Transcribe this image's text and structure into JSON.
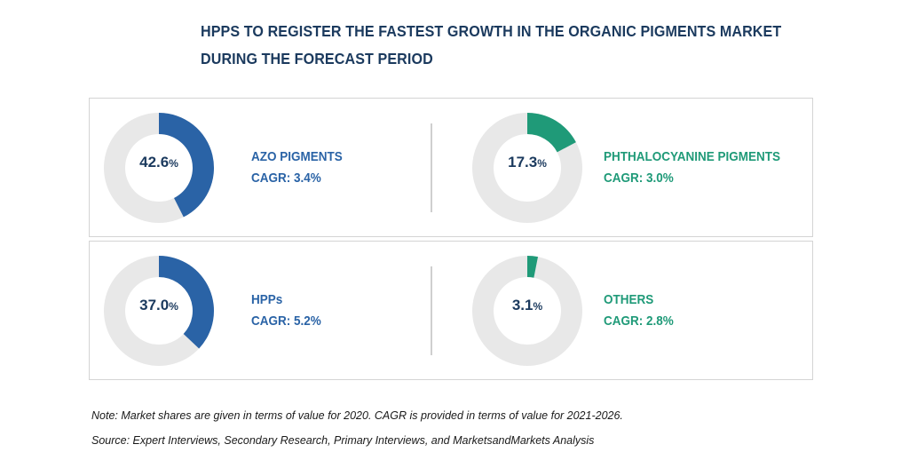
{
  "title": {
    "line1": "HPPS TO REGISTER THE FASTEST GROWTH IN THE ORGANIC PIGMENTS MARKET",
    "line2": "DURING THE FORECAST PERIOD"
  },
  "colors": {
    "blue": "#2a63a6",
    "green": "#1f9a78",
    "track": "#e8e8e8",
    "title": "#1b3a5e"
  },
  "chart_data": [
    {
      "type": "pie",
      "name": "AZO PIGMENTS",
      "value": 42.6,
      "value_label": "42.6",
      "unit": "%",
      "cagr": "CAGR: 3.4%",
      "color": "#2a63a6"
    },
    {
      "type": "pie",
      "name": "PHTHALOCYANINE PIGMENTS",
      "value": 17.3,
      "value_label": "17.3",
      "unit": "%",
      "cagr": "CAGR: 3.0%",
      "color": "#1f9a78"
    },
    {
      "type": "pie",
      "name": "HPPs",
      "value": 37.0,
      "value_label": "37.0",
      "unit": "%",
      "cagr": "CAGR: 5.2%",
      "color": "#2a63a6"
    },
    {
      "type": "pie",
      "name": "OTHERS",
      "value": 3.1,
      "value_label": "3.1",
      "unit": "%",
      "cagr": "CAGR: 2.8%",
      "color": "#1f9a78"
    }
  ],
  "footer": {
    "note": "Note: Market shares are given in terms of value for 2020. CAGR is provided in terms of value for 2021-2026.",
    "source": "Source: Expert Interviews, Secondary Research, Primary Interviews, and MarketsandMarkets Analysis"
  }
}
